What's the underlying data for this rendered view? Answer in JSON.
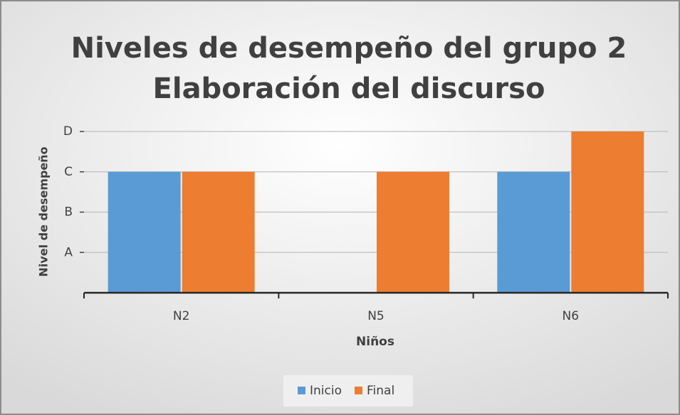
{
  "chart_data": {
    "type": "bar",
    "title": "Niveles de desempeño del grupo 2",
    "subtitle": "Elaboración del discurso",
    "x_label": "Niños",
    "y_label": "Nivel de desempeño",
    "categories": [
      "N2",
      "N5",
      "N6"
    ],
    "series": [
      {
        "name": "Inicio",
        "color": "#5b9bd5",
        "values": [
          3,
          null,
          3
        ]
      },
      {
        "name": "Final",
        "color": "#ed7d31",
        "values": [
          3,
          3,
          4
        ]
      }
    ],
    "ylim": [
      0,
      4
    ],
    "yticks": [
      {
        "value": 1,
        "label": "A"
      },
      {
        "value": 2,
        "label": "B"
      },
      {
        "value": 3,
        "label": "C"
      },
      {
        "value": 4,
        "label": "D"
      }
    ],
    "grid": true,
    "legend": "bottom"
  }
}
